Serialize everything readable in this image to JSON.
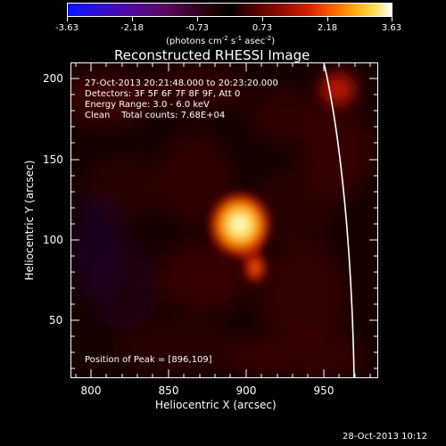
{
  "colorbar": {
    "tick_labels": [
      "-3.63",
      "-2.18",
      "-0.73",
      "0.73",
      "2.18",
      "3.63"
    ],
    "unit_label": {
      "prefix": "(photons cm",
      "exp1": "-2",
      "mid1": " s",
      "exp2": "-1",
      "mid2": " asec",
      "exp3": "-2",
      "suffix": ")"
    },
    "colormap": "blue-black-red-yellow-white"
  },
  "plot": {
    "title": "Reconstructed RHESSI Image",
    "info_lines": [
      "27-Oct-2013 20:21:48.000 to 20:23:20.000",
      "Detectors: 3F 5F 6F 7F 8F 9F, Att 0",
      "Energy Range: 3.0 - 6.0 keV",
      "Clean    Total counts: 7.68E+04"
    ],
    "peak_label": "Position of Peak = [896,109]",
    "peak_position": [
      896,
      109
    ],
    "x_axis": {
      "label": "Heliocentric X (arcsec)",
      "ticks": [
        "800",
        "850",
        "900",
        "950"
      ],
      "range": [
        787,
        985
      ]
    },
    "y_axis": {
      "label": "Heliocentric Y (arcsec)",
      "ticks": [
        "50",
        "100",
        "150",
        "200"
      ],
      "range": [
        14,
        210
      ]
    }
  },
  "footer": {
    "timestamp": "28-Oct-2013 10:12"
  }
}
